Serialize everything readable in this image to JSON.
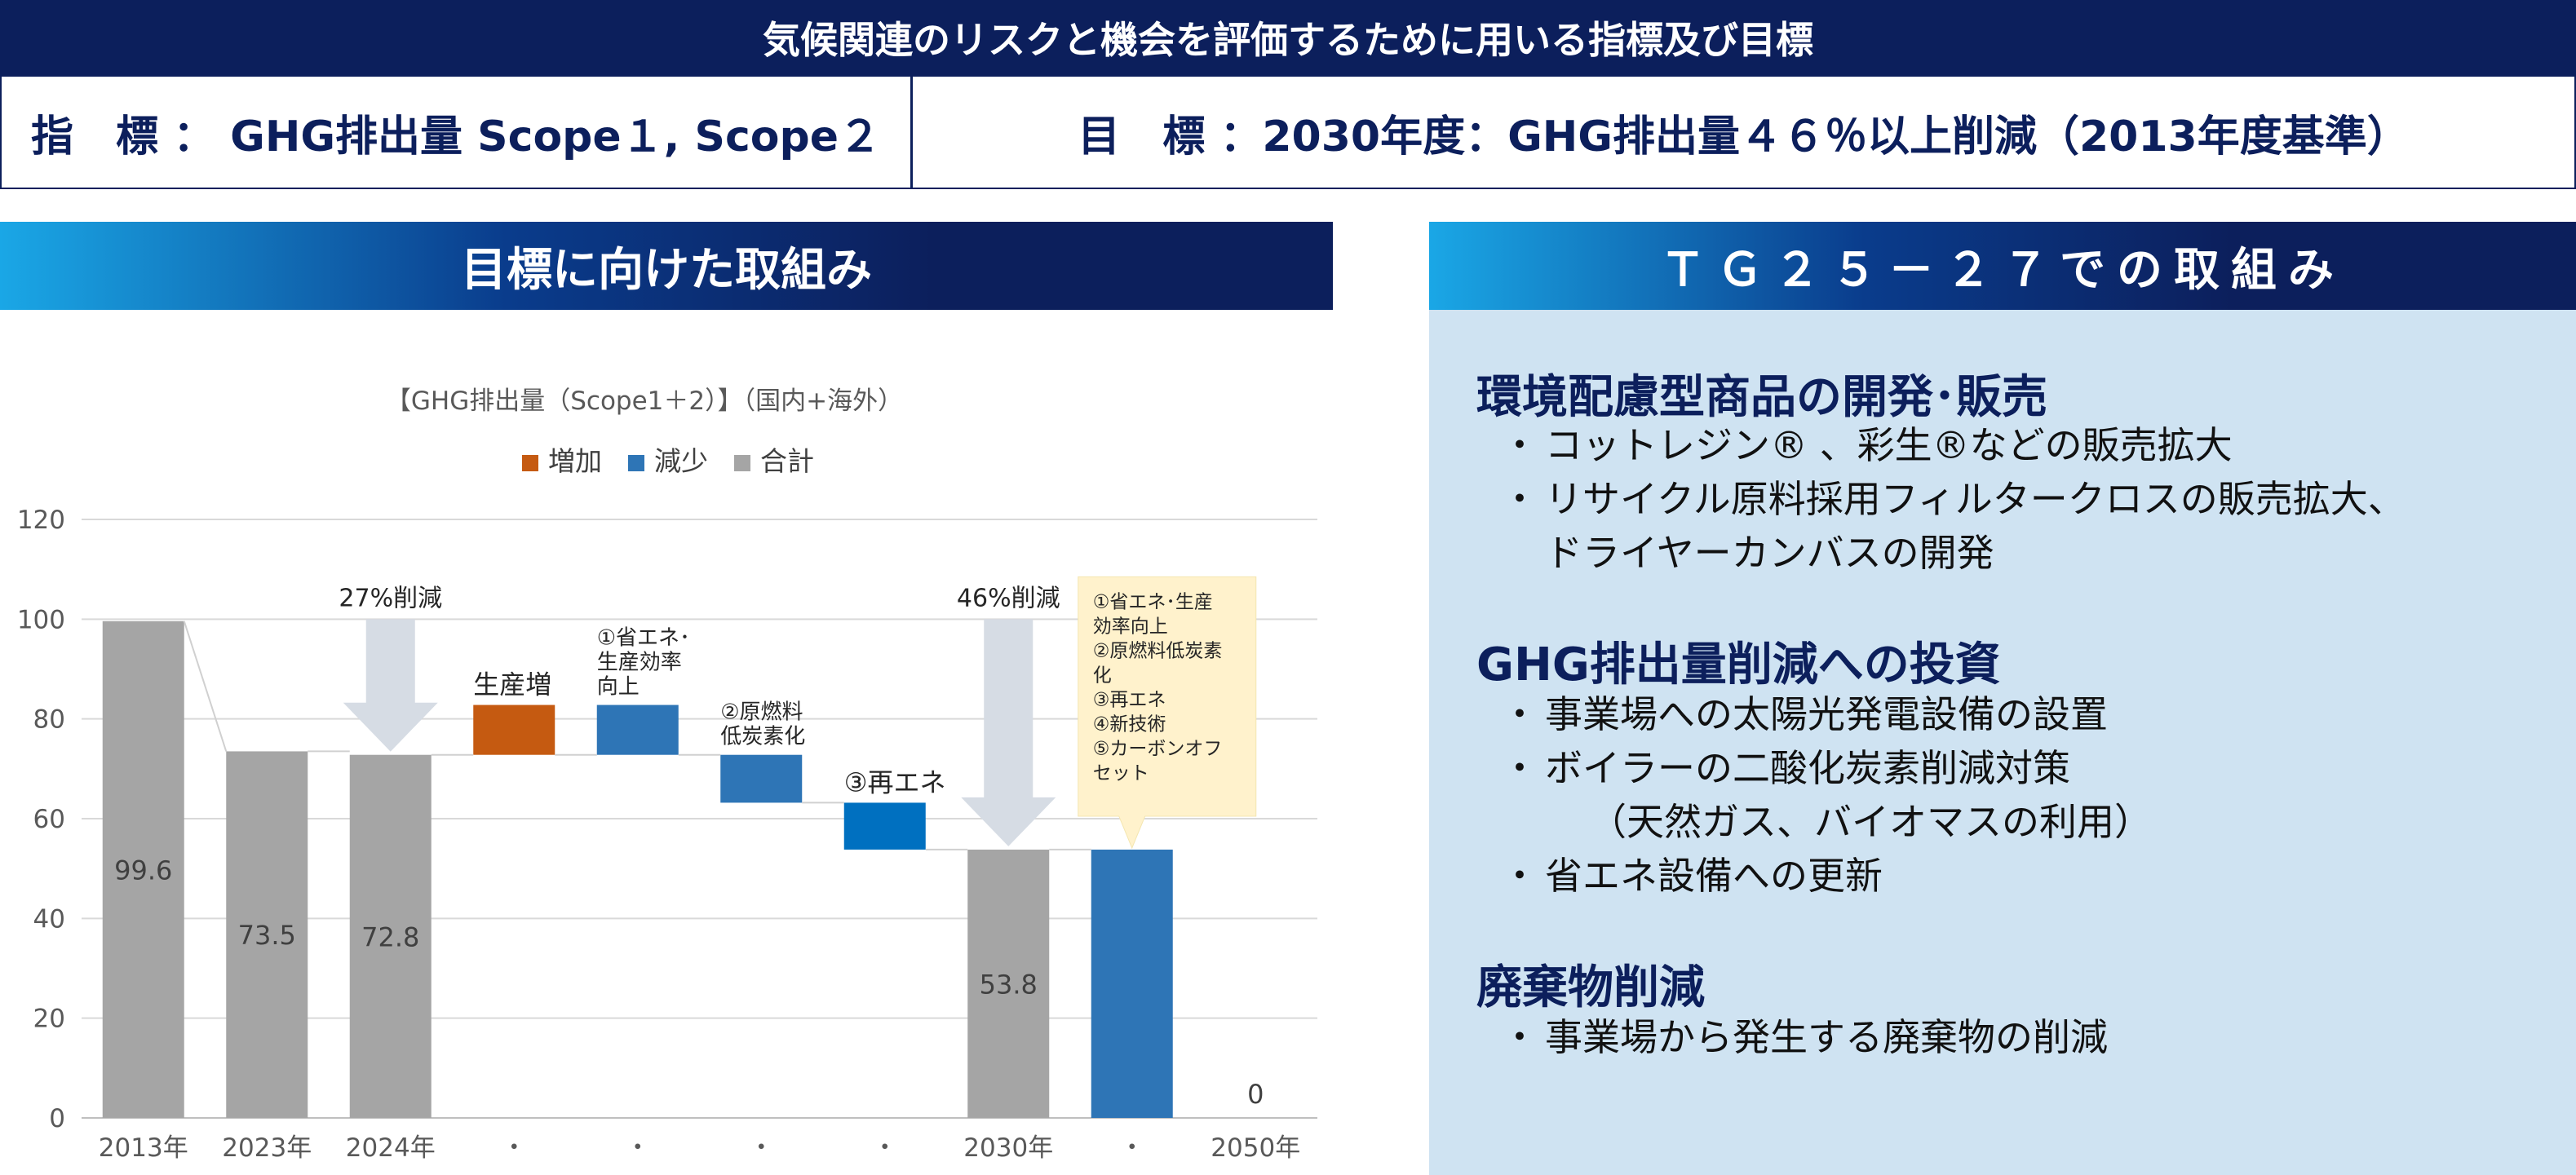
{
  "header": {
    "title": "気候関連のリスクと機会を評価するために用いる指標及び目標",
    "indicator": "指　標 ：  GHG排出量 Scope１, Scope２",
    "target": "目　標 ：2030年度：GHG排出量４６％以上削減（2013年度基準）"
  },
  "left_section": {
    "title": "目標に向けた取組み"
  },
  "right_section": {
    "title": "ＴＧ２５－２７での取組み",
    "categories": [
      {
        "title": "環境配慮型商品の開発･販売",
        "items": [
          [
            "コットレジン® 、彩生®などの販売拡大"
          ],
          [
            "リサイクル原料採用フィルタークロスの販売拡大、",
            "ドライヤーカンバスの開発"
          ]
        ]
      },
      {
        "title": "GHG排出量削減への投資",
        "items": [
          [
            "事業場への太陽光発電設備の設置"
          ],
          [
            "ボイラーの二酸化炭素削減対策",
            "（天然ガス、バイオマスの利用）"
          ],
          [
            "省エネ設備への更新"
          ]
        ]
      },
      {
        "title": "廃棄物削減",
        "items": [
          [
            "事業場から発生する廃棄物の削減"
          ]
        ]
      }
    ],
    "bullet_symbol": "・"
  },
  "chart_data": {
    "type": "bar",
    "subtype": "waterfall",
    "title": "【GHG排出量（Scope1＋2）】（国内+海外）",
    "legend": [
      {
        "name": "増加",
        "color": "#c55a11"
      },
      {
        "name": "減少",
        "color": "#2e75b6"
      },
      {
        "name": "合計",
        "color": "#a5a5a5"
      }
    ],
    "legend_position": "top-center",
    "categories": [
      "2013年",
      "2023年",
      "2024年",
      "・",
      "・",
      "・",
      "・",
      "2030年",
      "・",
      "2050年"
    ],
    "bars": [
      {
        "kind": "合計",
        "base": 0,
        "top": 99.6,
        "label": "99.6"
      },
      {
        "kind": "合計",
        "base": 0,
        "top": 73.5,
        "label": "73.5"
      },
      {
        "kind": "合計",
        "base": 0,
        "top": 72.8,
        "label": "72.8"
      },
      {
        "kind": "増加",
        "base": 72.8,
        "top": 82.8,
        "label": ""
      },
      {
        "kind": "減少",
        "base": 72.8,
        "top": 82.8,
        "label": ""
      },
      {
        "kind": "減少",
        "base": 63.2,
        "top": 72.8,
        "label": ""
      },
      {
        "kind": "減少",
        "base": 53.8,
        "top": 63.2,
        "label": ""
      },
      {
        "kind": "合計",
        "base": 0,
        "top": 53.8,
        "label": "53.8"
      },
      {
        "kind": "減少",
        "base": 0,
        "top": 53.8,
        "label": ""
      },
      {
        "kind": "合計",
        "base": 0,
        "top": 0,
        "label": "0"
      }
    ],
    "ylim": [
      0,
      120
    ],
    "yticks": [
      0,
      20,
      40,
      60,
      80,
      100,
      120
    ],
    "grid": true,
    "annotations": {
      "bar_notes": [
        {
          "index": 3,
          "lines": [
            "生産増"
          ]
        },
        {
          "index": 4,
          "lines": [
            "①省エネ･",
            "生産効率",
            "向上"
          ]
        },
        {
          "index": 5,
          "lines": [
            "②原燃料",
            "低炭素化"
          ]
        },
        {
          "index": 6,
          "lines": [
            "③再エネ"
          ]
        }
      ],
      "reductions": [
        {
          "index": 2,
          "label": "27%削減"
        },
        {
          "index": 7,
          "label": "46%削減"
        }
      ],
      "callout": {
        "index": 8,
        "lines": [
          "①省エネ･生産",
          "効率向上",
          "②原燃料低炭素",
          "化",
          "③再エネ",
          "④新技術",
          "⑤カーボンオフ",
          "セット"
        ]
      }
    },
    "colors": {
      "増加": "#c55a11",
      "減少": "#2e75b6",
      "減少_alt": "#0070c0",
      "合計": "#a5a5a5",
      "arrow": "#d6dce4",
      "callout": "#fff2cc"
    }
  }
}
